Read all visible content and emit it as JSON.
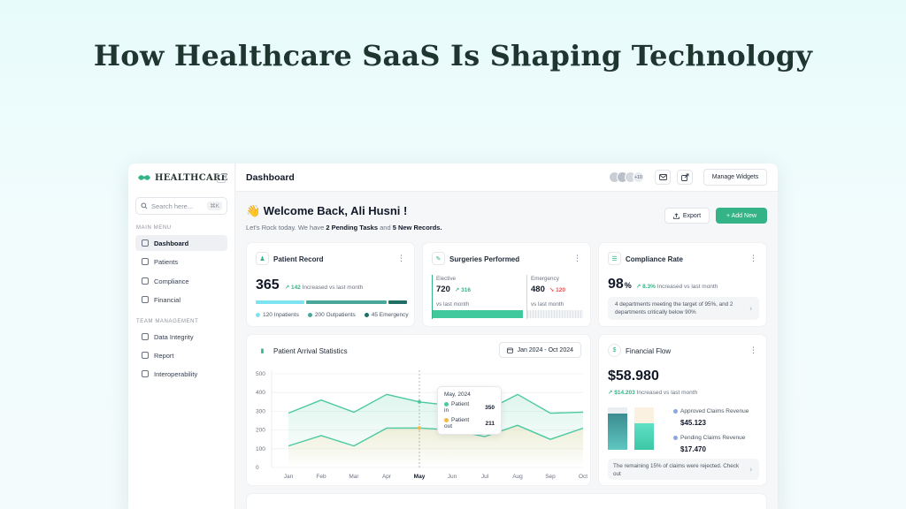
{
  "headline": "How Healthcare SaaS Is Shaping Technology",
  "sidebar": {
    "brand": "HEALTHCARE",
    "search_placeholder": "Search here...",
    "search_shortcut": "⌘K",
    "main_menu_label": "MAIN MENU",
    "team_label": "TEAM MANAGEMENT",
    "main_items": [
      {
        "label": "Dashboard",
        "icon": "home-icon"
      },
      {
        "label": "Patients",
        "icon": "users-icon"
      },
      {
        "label": "Compliance",
        "icon": "clipboard-icon"
      },
      {
        "label": "Financial",
        "icon": "document-icon"
      }
    ],
    "team_items": [
      {
        "label": "Data Integrity",
        "icon": "database-icon"
      },
      {
        "label": "Report",
        "icon": "report-icon"
      },
      {
        "label": "Interoperability",
        "icon": "grid-icon"
      }
    ]
  },
  "header": {
    "title": "Dashboard",
    "avatar_extra": "+10",
    "manage_label": "Manage Widgets"
  },
  "welcome": {
    "title": "👋 Welcome Back, Ali Husni !",
    "sub_prefix": "Let's Rock today. We have ",
    "sub_tasks": "2 Pending Tasks",
    "sub_mid": " and ",
    "sub_records": "5 New Records.",
    "export_label": "Export",
    "add_label": "+ Add New"
  },
  "patient_record": {
    "title": "Patient Record",
    "value": "365",
    "trend_value": "↗ 142",
    "trend_text": "Increased vs last month",
    "segments": [
      {
        "label": "120 Inpatients",
        "value": 120,
        "color": "#7ee3f0"
      },
      {
        "label": "200 Outpatients",
        "value": 200,
        "color": "#4aa89a"
      },
      {
        "label": "45 Emergency",
        "value": 45,
        "color": "#1f6f66"
      }
    ]
  },
  "surgeries": {
    "title": "Surgeries Performed",
    "elective_label": "Elective",
    "elective_value": "720",
    "elective_trend": "↗ 316",
    "emergency_label": "Emergency",
    "emergency_value": "480",
    "emergency_trend": "↘ 120",
    "vs_label": "vs last month",
    "vs_label2": "vs last month"
  },
  "compliance": {
    "title": "Compliance Rate",
    "value": "98",
    "unit": "%",
    "trend_value": "↗ 8.3%",
    "trend_text": "Increased vs last month",
    "note": "4 departments meeting the target of 95%, and 2 departments critically below 90%"
  },
  "arrival": {
    "title": "Patient Arrival Statistics",
    "date_range": "Jan 2024 - Oct 2024",
    "tooltip_title": "May, 2024",
    "tooltip_in_label": "Patient in",
    "tooltip_in_value": "350",
    "tooltip_out_label": "Patient out",
    "tooltip_out_value": "211"
  },
  "chart_data": {
    "type": "line",
    "x": [
      "Jan",
      "Feb",
      "Mar",
      "Apr",
      "May",
      "Jun",
      "Jul",
      "Aug",
      "Sep",
      "Oct"
    ],
    "y_ticks": [
      "0",
      "100",
      "200",
      "300",
      "400",
      "500"
    ],
    "ylim": [
      0,
      500
    ],
    "series": [
      {
        "name": "Patient in",
        "color": "#4cc9a0",
        "values": [
          290,
          360,
          295,
          390,
          350,
          330,
          300,
          390,
          290,
          295
        ]
      },
      {
        "name": "Patient out",
        "color": "#4cc9a0",
        "values": [
          115,
          170,
          115,
          210,
          211,
          200,
          165,
          225,
          150,
          210
        ]
      }
    ],
    "highlight_index": 4
  },
  "financial": {
    "title": "Financial Flow",
    "value": "$58.980",
    "trend_value": "↗ $14.203",
    "trend_text": "Increased vs last month",
    "approved_label": "Approved Claims Revenue",
    "approved_value": "$45.123",
    "approved_color": "#8aa8e0",
    "pending_label": "Pending Claims Revenue",
    "pending_value": "$17.470",
    "pending_color": "#8aa8e0",
    "bar_left_fill": 0.85,
    "bar_right_fill": 0.62,
    "note": "The remaining 15% of claims were rejected. Check out"
  },
  "colors": {
    "accent": "#33b386",
    "danger": "#e05252"
  }
}
